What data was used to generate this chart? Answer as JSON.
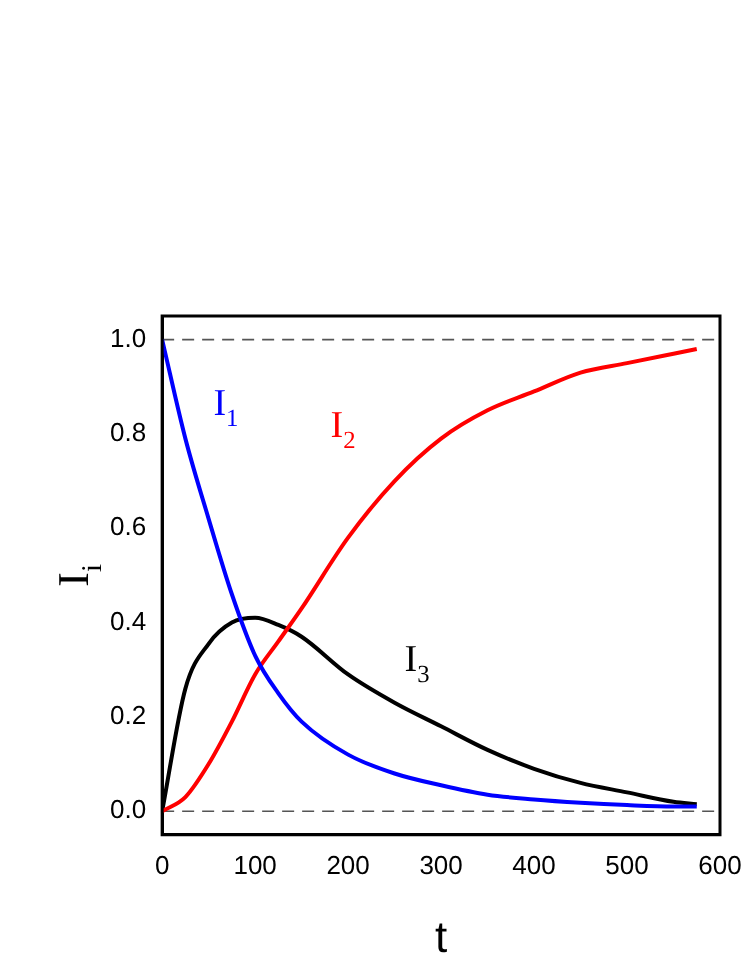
{
  "chart_data": {
    "type": "line",
    "xlabel": "t",
    "ylabel": "I$_{i}$",
    "x": [
      0,
      25,
      50,
      75,
      100,
      125,
      150,
      200,
      250,
      300,
      350,
      400,
      450,
      500,
      550,
      575
    ],
    "series": [
      {
        "name": "I$_{1}$",
        "color": "#0000ff",
        "values": [
          1,
          0.79,
          0.62,
          0.46,
          0.33,
          0.25,
          0.19,
          0.12,
          0.08,
          0.055,
          0.035,
          0.025,
          0.018,
          0.013,
          0.01,
          0.01
        ]
      },
      {
        "name": "I$_{2}$",
        "color": "#ff0000",
        "values": [
          0,
          0.03,
          0.1,
          0.19,
          0.29,
          0.36,
          0.43,
          0.58,
          0.7,
          0.79,
          0.85,
          0.89,
          0.93,
          0.95,
          0.97,
          0.98
        ]
      },
      {
        "name": "I$_{3}$",
        "color": "#000000",
        "values": [
          0,
          0.26,
          0.355,
          0.4,
          0.41,
          0.395,
          0.37,
          0.29,
          0.23,
          0.18,
          0.13,
          0.09,
          0.06,
          0.04,
          0.02,
          0.015
        ]
      }
    ],
    "xlim": [
      0,
      600
    ],
    "ylim": [
      -0.05,
      1.05
    ],
    "xticks": [
      0,
      100,
      200,
      300,
      400,
      500,
      600
    ],
    "yticks": [
      {
        "value": 0,
        "label": "0.0"
      },
      {
        "value": 0.2,
        "label": "0.2"
      },
      {
        "value": 0.4,
        "label": "0.4"
      },
      {
        "value": 0.6,
        "label": "0.6"
      },
      {
        "value": 0.8,
        "label": "0.8"
      },
      {
        "value": 1,
        "label": "1.0"
      }
    ],
    "ref_lines": [
      {
        "axis": "y",
        "value": 0,
        "line_style": "dashed",
        "color": "#555555"
      },
      {
        "axis": "y",
        "value": 1,
        "line_style": "dashed",
        "color": "#555555"
      }
    ],
    "grid": false,
    "legend": false,
    "marker": "none",
    "line_style": "solid"
  }
}
